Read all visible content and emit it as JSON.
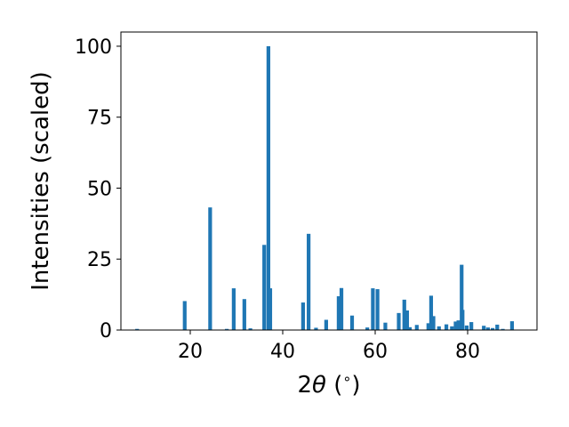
{
  "chart_data": {
    "type": "bar",
    "xlabel_main": "2",
    "xlabel_theta": "θ",
    "xlabel_units": " (",
    "xlabel_degree": "∘",
    "xlabel_close": ")",
    "ylabel": "Intensities (scaled)",
    "xlim": [
      5,
      95
    ],
    "ylim": [
      0,
      105
    ],
    "xticks": [
      20,
      40,
      60,
      80
    ],
    "yticks": [
      0,
      25,
      50,
      75,
      100
    ],
    "grid": false,
    "bar_color": "#1f77b4",
    "series": [
      {
        "x": [
          8.5,
          18.8,
          24.3,
          27.9,
          29.4,
          31.7,
          33.0,
          36.0,
          36.9,
          37.3,
          44.4,
          45.6,
          47.2,
          49.4,
          52.1,
          52.7,
          55.0,
          58.3,
          59.5,
          60.5,
          62.2,
          65.1,
          66.3,
          66.9,
          67.5,
          69.0,
          71.5,
          72.1,
          72.6,
          73.8,
          75.4,
          76.6,
          77.4,
          78.0,
          78.7,
          78.9,
          79.8,
          80.8,
          83.5,
          84.4,
          85.4,
          86.4,
          87.6,
          89.6
        ],
        "values": [
          0.4,
          10.2,
          43.2,
          0.4,
          14.7,
          10.9,
          0.6,
          30.0,
          100.0,
          14.7,
          9.7,
          33.9,
          0.8,
          3.6,
          11.9,
          14.8,
          5.1,
          0.9,
          14.7,
          14.4,
          2.6,
          6.0,
          10.7,
          6.9,
          1.0,
          1.8,
          2.4,
          12.1,
          4.9,
          1.3,
          2.0,
          1.3,
          3.0,
          3.4,
          23.0,
          7.1,
          1.6,
          2.8,
          1.5,
          0.9,
          0.7,
          1.9,
          0.4,
          3.1
        ]
      }
    ]
  }
}
